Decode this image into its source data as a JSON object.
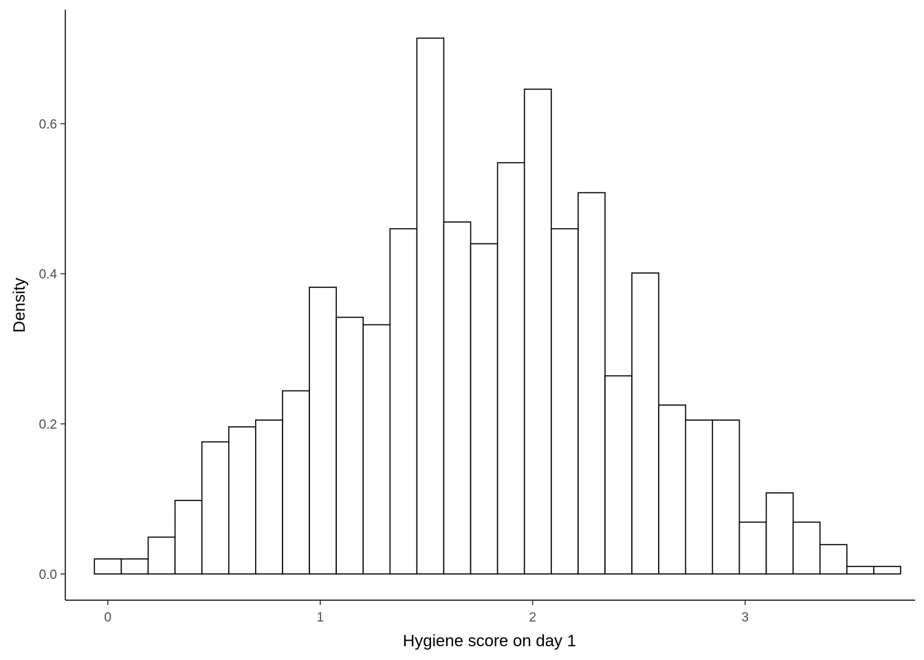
{
  "chart_data": {
    "type": "bar",
    "subtype": "histogram",
    "xlabel": "Hygiene score on day 1",
    "ylabel": "Density",
    "xlim": [
      -0.2,
      3.8
    ],
    "ylim": [
      -0.035,
      0.752
    ],
    "x_ticks": [
      {
        "value": 0,
        "label": "0"
      },
      {
        "value": 1,
        "label": "1"
      },
      {
        "value": 2,
        "label": "2"
      },
      {
        "value": 3,
        "label": "3"
      }
    ],
    "y_ticks": [
      {
        "value": 0,
        "label": "0.0"
      },
      {
        "value": 0.2,
        "label": "0.2"
      },
      {
        "value": 0.4,
        "label": "0.4"
      },
      {
        "value": 0.6,
        "label": "0.6"
      }
    ],
    "bin_start": -0.063,
    "bin_width": 0.1265,
    "values": [
      0.02,
      0.02,
      0.049,
      0.098,
      0.176,
      0.196,
      0.205,
      0.244,
      0.382,
      0.342,
      0.332,
      0.46,
      0.714,
      0.469,
      0.44,
      0.548,
      0.646,
      0.46,
      0.508,
      0.264,
      0.401,
      0.225,
      0.205,
      0.205,
      0.069,
      0.108,
      0.069,
      0.039,
      0.01,
      0.01
    ],
    "bar_fill": "#ffffff",
    "bar_stroke": "#000000",
    "grid": false,
    "legend": "none"
  }
}
